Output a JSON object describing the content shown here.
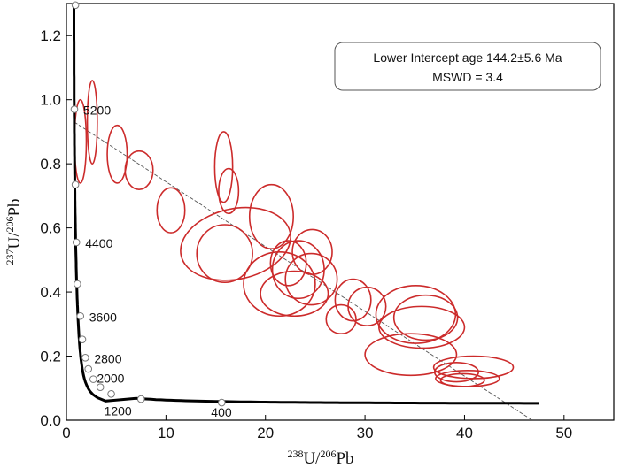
{
  "chart_data": {
    "type": "scatter",
    "title": "",
    "xlabel": {
      "sup1": "238",
      "base1": "U/",
      "sup2": "206",
      "base2": "Pb"
    },
    "ylabel": {
      "sup1": "237",
      "base1": "U/",
      "sup2": "206",
      "base2": "Pb"
    },
    "xlim": [
      0,
      55
    ],
    "ylim": [
      0,
      1.3
    ],
    "x_ticks": [
      0,
      10,
      20,
      30,
      40,
      50
    ],
    "y_ticks": [
      0.0,
      0.2,
      0.4,
      0.6,
      0.8,
      1.0,
      1.2
    ],
    "x_tick_labels": [
      "0",
      "10",
      "20",
      "30",
      "40",
      "50"
    ],
    "y_tick_labels": [
      "0.0",
      "0.2",
      "0.4",
      "0.6",
      "0.8",
      "1.0",
      "1.2"
    ],
    "annotation": {
      "line1": "Lower Intercept age 144.2±5.6 Ma",
      "line2": "MSWD = 3.4"
    },
    "concordia_age_markers": [
      {
        "label": "5200",
        "x": 0.8,
        "y": 0.97
      },
      {
        "label": "4400",
        "x": 1.0,
        "y": 0.555
      },
      {
        "label": "3600",
        "x": 1.4,
        "y": 0.325
      },
      {
        "label": "2800",
        "x": 1.9,
        "y": 0.195
      },
      {
        "label": "2000",
        "x": 2.7,
        "y": 0.128
      },
      {
        "label": "1200",
        "x": 4.5,
        "y": 0.082
      },
      {
        "label": "400",
        "x": 15.6,
        "y": 0.055
      }
    ],
    "concordia_extra_markers": [
      {
        "x": 0.9,
        "y": 1.295
      },
      {
        "x": 0.9,
        "y": 0.735
      },
      {
        "x": 1.1,
        "y": 0.425
      },
      {
        "x": 1.6,
        "y": 0.252
      },
      {
        "x": 2.2,
        "y": 0.16
      },
      {
        "x": 3.4,
        "y": 0.103
      },
      {
        "x": 7.5,
        "y": 0.066
      }
    ],
    "regression_line": {
      "x": [
        0.8,
        46.8
      ],
      "y": [
        0.93,
        0.0
      ]
    },
    "ellipses": [
      {
        "x": 1.4,
        "y": 0.87,
        "rx": 0.6,
        "ry": 0.13,
        "rot": 0
      },
      {
        "x": 2.6,
        "y": 0.93,
        "rx": 0.5,
        "ry": 0.13,
        "rot": 0
      },
      {
        "x": 5.1,
        "y": 0.83,
        "rx": 1.0,
        "ry": 0.09,
        "rot": 0
      },
      {
        "x": 7.3,
        "y": 0.78,
        "rx": 1.4,
        "ry": 0.06,
        "rot": 0
      },
      {
        "x": 10.5,
        "y": 0.655,
        "rx": 1.4,
        "ry": 0.07,
        "rot": 0
      },
      {
        "x": 15.8,
        "y": 0.79,
        "rx": 0.9,
        "ry": 0.11,
        "rot": 0
      },
      {
        "x": 16.3,
        "y": 0.715,
        "rx": 1.0,
        "ry": 0.07,
        "rot": 0
      },
      {
        "x": 20.6,
        "y": 0.635,
        "rx": 2.2,
        "ry": 0.1,
        "rot": 0
      },
      {
        "x": 17.0,
        "y": 0.55,
        "rx": 5.6,
        "ry": 0.11,
        "rot": -12
      },
      {
        "x": 15.9,
        "y": 0.52,
        "rx": 2.8,
        "ry": 0.09,
        "rot": 0
      },
      {
        "x": 24.7,
        "y": 0.525,
        "rx": 2.0,
        "ry": 0.07,
        "rot": 0
      },
      {
        "x": 22.3,
        "y": 0.49,
        "rx": 1.8,
        "ry": 0.07,
        "rot": 0
      },
      {
        "x": 23.3,
        "y": 0.47,
        "rx": 2.6,
        "ry": 0.09,
        "rot": 0
      },
      {
        "x": 21.4,
        "y": 0.425,
        "rx": 3.6,
        "ry": 0.1,
        "rot": 0
      },
      {
        "x": 24.6,
        "y": 0.44,
        "rx": 2.6,
        "ry": 0.08,
        "rot": 0
      },
      {
        "x": 22.9,
        "y": 0.395,
        "rx": 3.4,
        "ry": 0.07,
        "rot": 0
      },
      {
        "x": 28.8,
        "y": 0.375,
        "rx": 1.8,
        "ry": 0.065,
        "rot": 0
      },
      {
        "x": 30.2,
        "y": 0.355,
        "rx": 1.9,
        "ry": 0.06,
        "rot": 0
      },
      {
        "x": 27.6,
        "y": 0.315,
        "rx": 1.5,
        "ry": 0.045,
        "rot": 0
      },
      {
        "x": 35.1,
        "y": 0.33,
        "rx": 4.0,
        "ry": 0.09,
        "rot": 0
      },
      {
        "x": 36.1,
        "y": 0.32,
        "rx": 3.2,
        "ry": 0.07,
        "rot": 0
      },
      {
        "x": 35.7,
        "y": 0.29,
        "rx": 4.3,
        "ry": 0.065,
        "rot": 0
      },
      {
        "x": 34.6,
        "y": 0.205,
        "rx": 4.6,
        "ry": 0.065,
        "rot": 0
      },
      {
        "x": 40.9,
        "y": 0.165,
        "rx": 4.0,
        "ry": 0.035,
        "rot": 0
      },
      {
        "x": 39.2,
        "y": 0.15,
        "rx": 2.2,
        "ry": 0.03,
        "rot": 0
      },
      {
        "x": 40.3,
        "y": 0.13,
        "rx": 3.2,
        "ry": 0.025,
        "rot": 0
      },
      {
        "x": 39.8,
        "y": 0.125,
        "rx": 2.2,
        "ry": 0.02,
        "rot": 0
      }
    ]
  }
}
